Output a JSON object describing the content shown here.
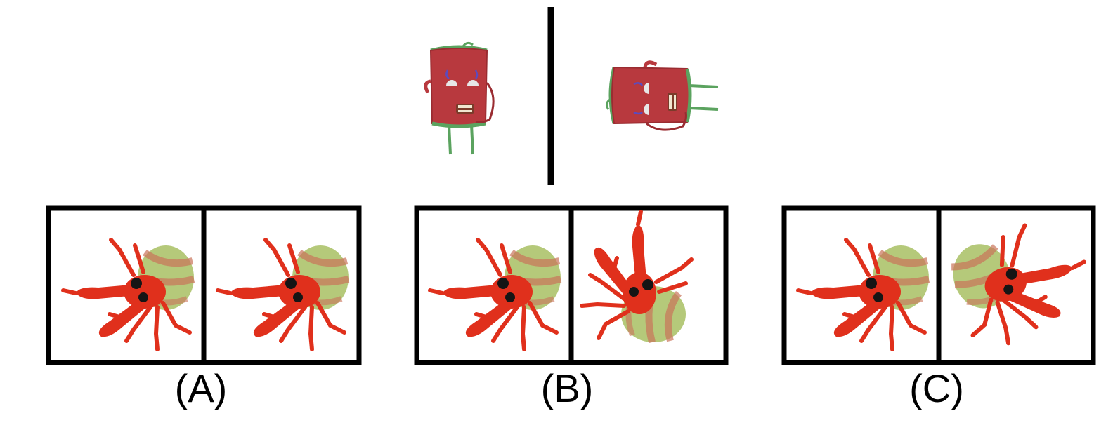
{
  "reference": {
    "left_view": "can-character-upright-icon",
    "right_view": "can-character-rotated-icon"
  },
  "options": [
    {
      "label": "(A)",
      "left": "crab-upright-icon",
      "right": "crab-upright-icon"
    },
    {
      "label": "(B)",
      "left": "crab-upright-icon",
      "right": "crab-rotated-up-icon"
    },
    {
      "label": "(C)",
      "left": "crab-upright-icon",
      "right": "crab-rotated-flipped-icon"
    }
  ],
  "colors": {
    "can_body": "#b8393e",
    "can_trim": "#5ba35f",
    "crab": "#e0301c",
    "shell_green": "#b5c97a",
    "shell_red": "#c9735a"
  }
}
